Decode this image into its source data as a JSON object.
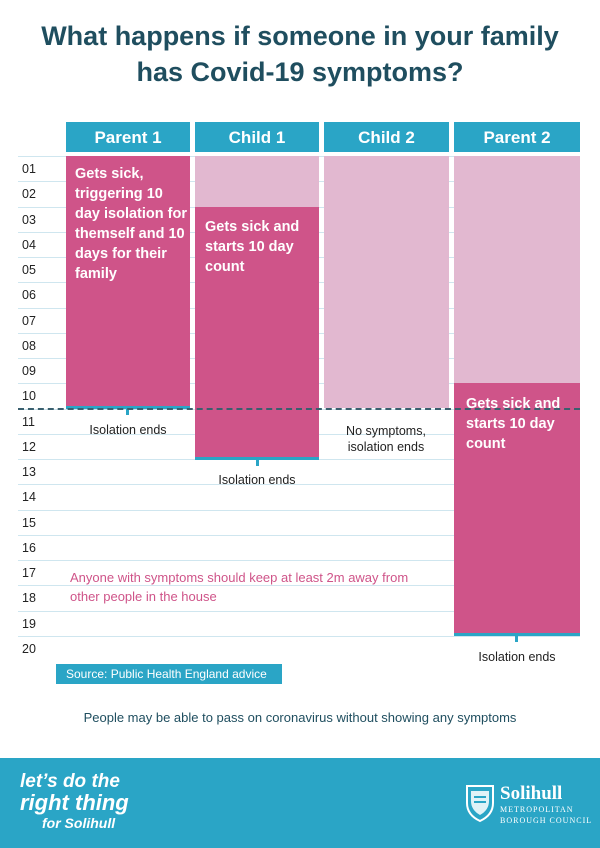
{
  "title": {
    "line1": "What happens if someone in your family",
    "line2": "has Covid-19 symptoms?"
  },
  "columns": [
    "Parent 1",
    "Child 1",
    "Child 2",
    "Parent 2"
  ],
  "days": [
    "01",
    "02",
    "03",
    "04",
    "05",
    "06",
    "07",
    "08",
    "09",
    "10",
    "11",
    "12",
    "13",
    "14",
    "15",
    "16",
    "17",
    "18",
    "19",
    "20"
  ],
  "people": {
    "parent1": {
      "sick_text": "Gets sick, triggering 10 day isolation for themself and 10 days for their family",
      "end_text": "Isolation ends"
    },
    "child1": {
      "sick_text": "Gets sick and starts 10 day count",
      "end_text": "Isolation ends"
    },
    "child2": {
      "end_text": "No symptoms, isolation ends"
    },
    "parent2": {
      "sick_text": "Gets sick and starts 10 day count",
      "end_text": "Isolation ends"
    }
  },
  "note": "Anyone with symptoms should keep at least 2m away from other people in the house",
  "source": "Source: Public Health England advice",
  "footnote": "People may be able to pass on coronavirus without showing any symptoms",
  "footer": {
    "slogan_line1": "let’s do the",
    "slogan_line2": "right thing",
    "slogan_line3": "for Solihull",
    "logo_name": "Solihull",
    "logo_sub1": "METROPOLITAN",
    "logo_sub2": "BOROUGH COUNCIL"
  },
  "colors": {
    "header_blue": "#2aa5c6",
    "sick_pink": "#cf5489",
    "isolation_light_pink": "#e2b8d0",
    "title_navy": "#1f4e5f"
  }
}
